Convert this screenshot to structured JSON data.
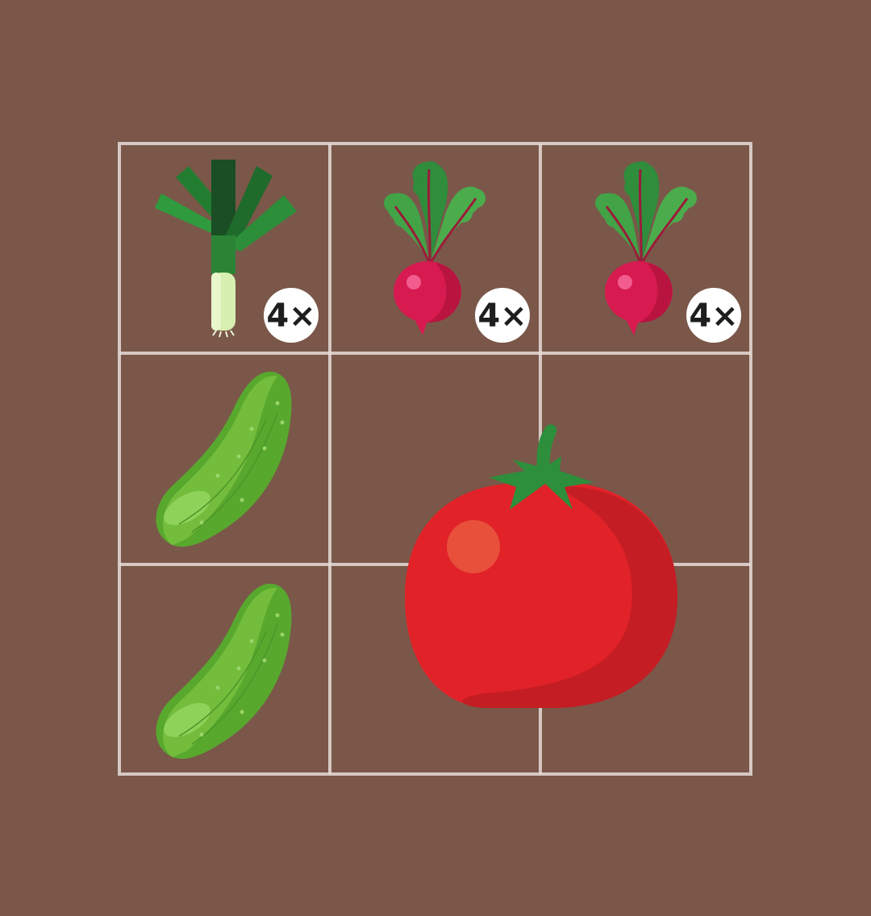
{
  "colors": {
    "background": "#7a5749",
    "grid_line": "#e6dcd8",
    "badge_fill": "#ffffff",
    "badge_text": "#1e1e1e"
  },
  "garden_grid": {
    "rows": 3,
    "columns": 3,
    "cells": [
      {
        "row": 1,
        "col": 1,
        "plant": "leek",
        "icon": "leek-icon",
        "count": 4,
        "badge": "4×"
      },
      {
        "row": 1,
        "col": 2,
        "plant": "radish",
        "icon": "radish-icon",
        "count": 4,
        "badge": "4×"
      },
      {
        "row": 1,
        "col": 3,
        "plant": "radish",
        "icon": "radish-icon",
        "count": 4,
        "badge": "4×"
      },
      {
        "row": 2,
        "col": 1,
        "plant": "cucumber",
        "icon": "cucumber-icon",
        "count": 1
      },
      {
        "row": 3,
        "col": 1,
        "plant": "cucumber",
        "icon": "cucumber-icon",
        "count": 1
      },
      {
        "row": "2-3",
        "col": "2-3",
        "plant": "tomato",
        "icon": "tomato-icon",
        "count": 1
      }
    ]
  }
}
